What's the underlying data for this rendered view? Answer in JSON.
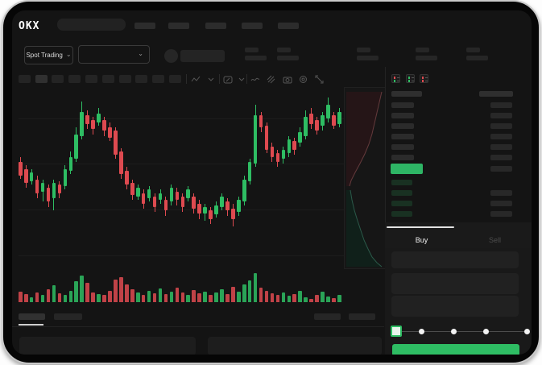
{
  "header": {
    "logo_text": "OKX",
    "nav_item_count": 5
  },
  "ticker_bar": {
    "market_selector_label": "Spot Trading",
    "stat_pair_count": 5
  },
  "chart_toolbar": {
    "interval_button_count": 10,
    "active_interval_index": 1,
    "icon_names": [
      "candle-style",
      "interval-chevron",
      "indicators",
      "indicators-chevron",
      "line-type",
      "draw-tool",
      "camera",
      "settings",
      "expand"
    ]
  },
  "chart_data": {
    "type": "candlestick",
    "note": "dir 1=up 0=down; body/wick values are percent of pane height from top",
    "candles": [
      [
        0,
        40,
        48,
        37,
        50
      ],
      [
        0,
        44,
        52,
        42,
        55
      ],
      [
        1,
        46,
        51,
        44,
        53
      ],
      [
        0,
        50,
        58,
        48,
        61
      ],
      [
        1,
        52,
        57,
        50,
        63
      ],
      [
        0,
        55,
        63,
        53,
        66
      ],
      [
        1,
        52,
        61,
        50,
        68
      ],
      [
        0,
        53,
        58,
        51,
        61
      ],
      [
        1,
        44,
        54,
        42,
        56
      ],
      [
        1,
        37,
        45,
        34,
        47
      ],
      [
        1,
        24,
        38,
        20,
        40
      ],
      [
        1,
        11,
        25,
        5,
        27
      ],
      [
        0,
        13,
        18,
        10,
        21
      ],
      [
        0,
        16,
        21,
        14,
        24
      ],
      [
        1,
        12,
        17,
        9,
        19
      ],
      [
        0,
        16,
        22,
        14,
        25
      ],
      [
        0,
        20,
        26,
        17,
        28
      ],
      [
        0,
        22,
        36,
        20,
        38
      ],
      [
        0,
        34,
        47,
        32,
        50
      ],
      [
        0,
        45,
        53,
        43,
        56
      ],
      [
        0,
        52,
        59,
        50,
        62
      ],
      [
        1,
        55,
        60,
        53,
        62
      ],
      [
        0,
        58,
        64,
        56,
        67
      ],
      [
        1,
        56,
        61,
        54,
        63
      ],
      [
        0,
        60,
        66,
        58,
        69
      ],
      [
        1,
        58,
        62,
        56,
        64
      ],
      [
        0,
        62,
        68,
        60,
        71
      ],
      [
        1,
        55,
        63,
        53,
        65
      ],
      [
        0,
        57,
        62,
        55,
        65
      ],
      [
        0,
        60,
        66,
        58,
        69
      ],
      [
        1,
        56,
        61,
        54,
        63
      ],
      [
        0,
        60,
        67,
        58,
        70
      ],
      [
        0,
        64,
        70,
        62,
        73
      ],
      [
        1,
        66,
        70,
        64,
        74
      ],
      [
        0,
        68,
        73,
        66,
        76
      ],
      [
        1,
        65,
        70,
        63,
        72
      ],
      [
        1,
        60,
        66,
        58,
        68
      ],
      [
        0,
        63,
        68,
        61,
        71
      ],
      [
        0,
        67,
        73,
        64,
        77
      ],
      [
        1,
        62,
        69,
        60,
        71
      ],
      [
        1,
        50,
        63,
        48,
        65
      ],
      [
        1,
        40,
        51,
        38,
        53
      ],
      [
        1,
        13,
        41,
        7,
        43
      ],
      [
        0,
        13,
        20,
        11,
        23
      ],
      [
        0,
        19,
        33,
        17,
        35
      ],
      [
        0,
        31,
        37,
        29,
        40
      ],
      [
        0,
        35,
        40,
        33,
        43
      ],
      [
        1,
        33,
        38,
        31,
        41
      ],
      [
        1,
        27,
        35,
        25,
        37
      ],
      [
        0,
        28,
        33,
        26,
        36
      ],
      [
        1,
        23,
        29,
        20,
        31
      ],
      [
        1,
        14,
        25,
        10,
        27
      ],
      [
        0,
        12,
        18,
        9,
        21
      ],
      [
        0,
        16,
        22,
        14,
        24
      ],
      [
        1,
        13,
        19,
        11,
        22
      ],
      [
        1,
        7,
        15,
        3,
        17
      ],
      [
        0,
        13,
        19,
        11,
        21
      ],
      [
        1,
        11,
        18,
        9,
        20
      ]
    ],
    "volume": [
      13,
      10,
      6,
      12,
      9,
      16,
      21,
      11,
      9,
      14,
      26,
      33,
      24,
      12,
      10,
      9,
      14,
      28,
      31,
      22,
      16,
      12,
      9,
      14,
      11,
      17,
      10,
      13,
      18,
      12,
      9,
      15,
      11,
      13,
      9,
      12,
      16,
      10,
      19,
      13,
      22,
      27,
      36,
      18,
      14,
      11,
      9,
      12,
      8,
      10,
      14,
      6,
      4,
      9,
      13,
      7,
      5,
      9
    ],
    "up_color": "#2ebd63",
    "down_color": "#de4a50"
  },
  "depth_panel": {
    "ask_fill": "#251517",
    "ask_line": "#643a3c",
    "bid_fill": "#10201a",
    "bid_line": "#2b5949"
  },
  "order_book": {
    "display_modes": [
      "combined-book",
      "bids-only",
      "asks-only"
    ],
    "ask_row_count": 6,
    "bid_row_count": 4,
    "bid_rows_with_amount": 3,
    "price_highlight_color": "#2eb565"
  },
  "trade_panel": {
    "tabs": [
      {
        "label": "Buy",
        "active": true
      },
      {
        "label": "Sell",
        "active": false
      }
    ],
    "field_count": 3,
    "slider_stop_count": 5,
    "slider_value_index": 0,
    "submit_button_label": "",
    "submit_button_color": "#2ebd63"
  },
  "bottom_section": {
    "tab_count": 2,
    "active_tab_index": 0,
    "action_button_count": 2,
    "panel_count": 2
  },
  "icons": {
    "chevron_down": "⌄"
  },
  "colors": {
    "app_bg": "#141414",
    "accent_green": "#2ebd63",
    "accent_red": "#de4a50",
    "skeleton": "#2a2a2a"
  }
}
